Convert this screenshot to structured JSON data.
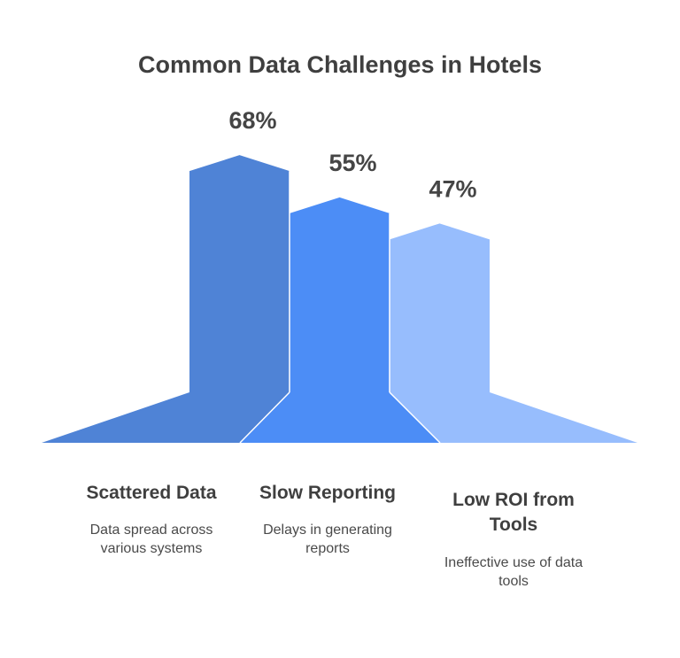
{
  "title": "Common Data Challenges in Hotels",
  "chart_data": {
    "type": "bar",
    "title": "Common Data Challenges in Hotels",
    "categories": [
      "Scattered Data",
      "Slow Reporting",
      "Low ROI from Tools"
    ],
    "values": [
      68,
      55,
      47
    ],
    "value_labels": [
      "68%",
      "55%",
      "47%"
    ],
    "descriptions": [
      "Data spread across various systems",
      "Delays in generating reports",
      "Ineffective use of data tools"
    ],
    "colors": [
      "#4f83d6",
      "#4c8df6",
      "#97bdfd"
    ],
    "unit": "%"
  },
  "items": [
    {
      "name": "Scattered Data",
      "desc": "Data spread across various systems"
    },
    {
      "name": "Slow Reporting",
      "desc": "Delays in generating reports"
    },
    {
      "name": "Low ROI from Tools",
      "desc": "Ineffective use of data tools"
    }
  ]
}
